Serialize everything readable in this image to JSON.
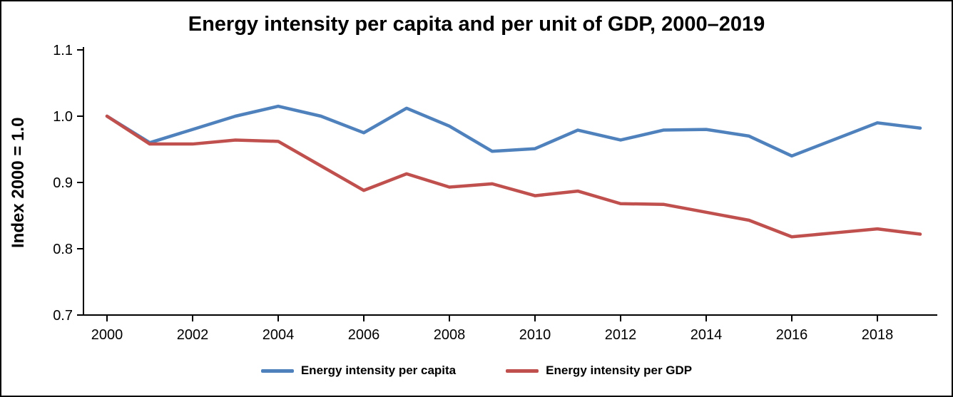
{
  "chart_data": {
    "type": "line",
    "title": "Energy intensity per capita and per unit of GDP, 2000–2019",
    "xlabel": "",
    "ylabel": "Index 2000 = 1.0",
    "x": [
      2000,
      2001,
      2002,
      2003,
      2004,
      2005,
      2006,
      2007,
      2008,
      2009,
      2010,
      2011,
      2012,
      2013,
      2014,
      2015,
      2016,
      2017,
      2018,
      2019
    ],
    "series": [
      {
        "name": "Energy intensity per capita",
        "color": "#4F81BD",
        "values": [
          1.0,
          0.96,
          0.98,
          1.0,
          1.015,
          1.0,
          0.975,
          1.012,
          0.985,
          0.947,
          0.951,
          0.979,
          0.964,
          0.979,
          0.98,
          0.97,
          0.94,
          0.965,
          0.99,
          0.982
        ]
      },
      {
        "name": "Energy intensity per GDP",
        "color": "#C0504D",
        "values": [
          1.0,
          0.958,
          0.958,
          0.964,
          0.962,
          0.925,
          0.888,
          0.913,
          0.893,
          0.898,
          0.88,
          0.887,
          0.868,
          0.867,
          0.855,
          0.843,
          0.818,
          0.824,
          0.83,
          0.822
        ]
      }
    ],
    "ylim": [
      0.7,
      1.1
    ],
    "yticks": [
      0.7,
      0.8,
      0.9,
      1.0,
      1.1
    ],
    "ytick_labels": [
      "0.7",
      "0.8",
      "0.9",
      "1.0",
      "1.1"
    ],
    "xticks": [
      2000,
      2002,
      2004,
      2006,
      2008,
      2010,
      2012,
      2014,
      2016,
      2018
    ],
    "grid": false,
    "legend_position": "bottom",
    "axis_color": "#000000",
    "tick_label_size": 20
  }
}
